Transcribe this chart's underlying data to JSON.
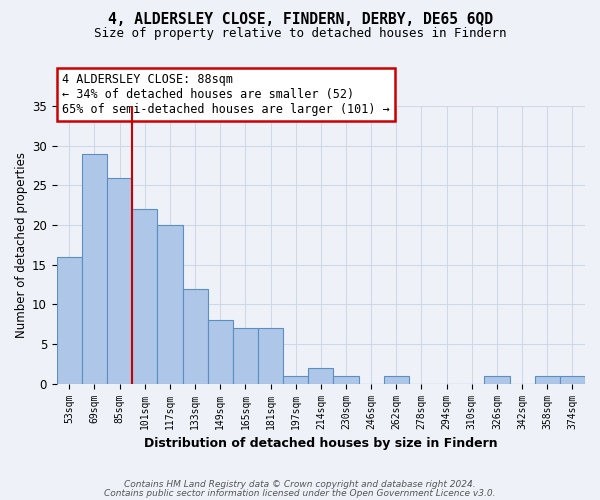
{
  "title_line1": "4, ALDERSLEY CLOSE, FINDERN, DERBY, DE65 6QD",
  "title_line2": "Size of property relative to detached houses in Findern",
  "xlabel": "Distribution of detached houses by size in Findern",
  "ylabel": "Number of detached properties",
  "categories": [
    "53sqm",
    "69sqm",
    "85sqm",
    "101sqm",
    "117sqm",
    "133sqm",
    "149sqm",
    "165sqm",
    "181sqm",
    "197sqm",
    "214sqm",
    "230sqm",
    "246sqm",
    "262sqm",
    "278sqm",
    "294sqm",
    "310sqm",
    "326sqm",
    "342sqm",
    "358sqm",
    "374sqm"
  ],
  "values": [
    16,
    29,
    26,
    22,
    20,
    12,
    8,
    7,
    7,
    1,
    2,
    1,
    0,
    1,
    0,
    0,
    0,
    1,
    0,
    1,
    1
  ],
  "bar_color": "#aec6e8",
  "bar_edge_color": "#5a8fc2",
  "red_line_x": 2.5,
  "annotation_text": "4 ALDERSLEY CLOSE: 88sqm\n← 34% of detached houses are smaller (52)\n65% of semi-detached houses are larger (101) →",
  "annotation_box_color": "#ffffff",
  "annotation_box_edge": "#cc0000",
  "vline_color": "#cc0000",
  "ylim": [
    0,
    35
  ],
  "yticks": [
    0,
    5,
    10,
    15,
    20,
    25,
    30,
    35
  ],
  "footnote1": "Contains HM Land Registry data © Crown copyright and database right 2024.",
  "footnote2": "Contains public sector information licensed under the Open Government Licence v3.0.",
  "grid_color": "#d0d8e8",
  "background_color": "#eef2f8"
}
